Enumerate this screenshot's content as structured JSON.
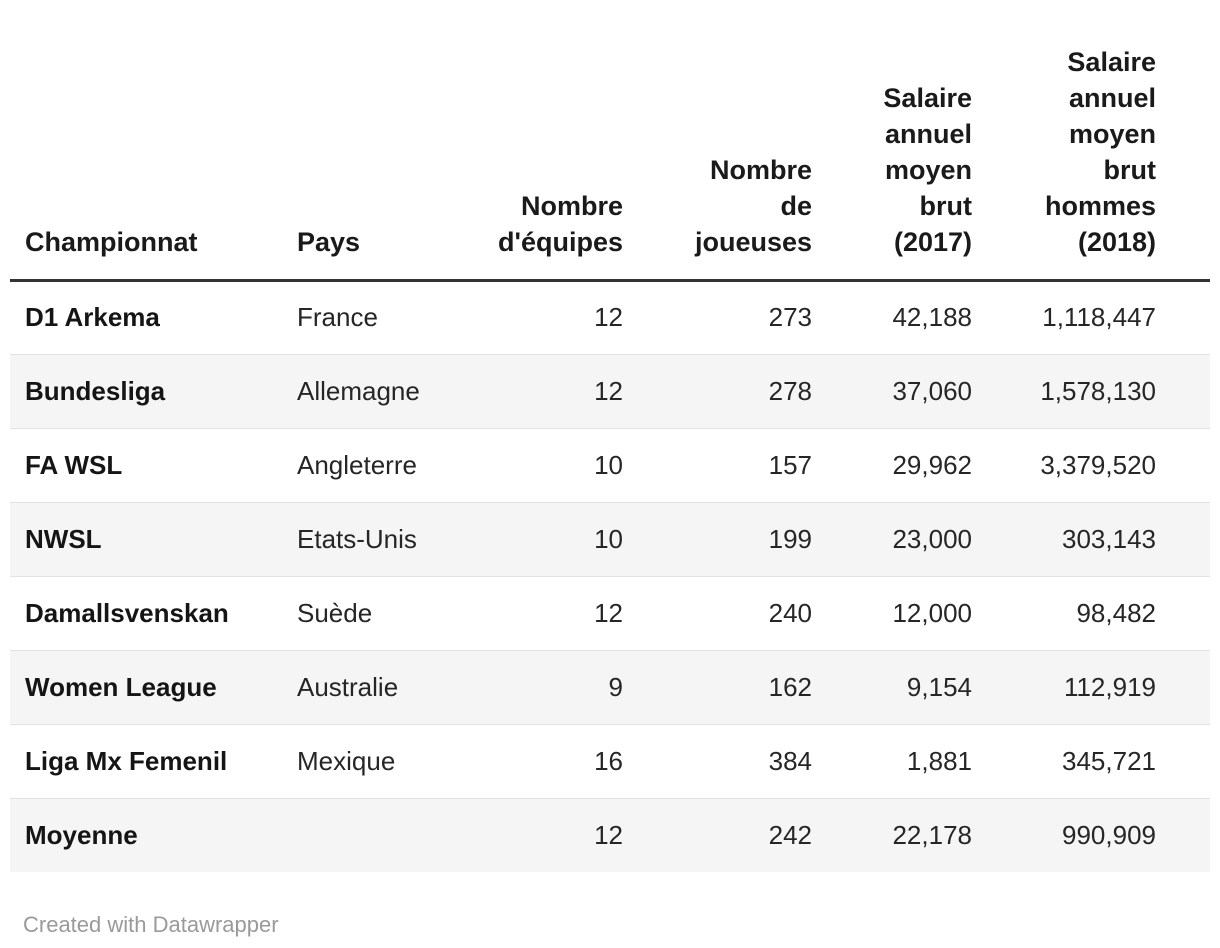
{
  "chart_data": {
    "type": "table",
    "columns": [
      {
        "label": "Championnat",
        "align": "left"
      },
      {
        "label": "Pays",
        "align": "left"
      },
      {
        "label": "Nombre\nd'équipes",
        "align": "right"
      },
      {
        "label": "Nombre\nde\njoueuses",
        "align": "right"
      },
      {
        "label": "Salaire\nannuel\nmoyen\nbrut\n(2017)",
        "align": "right"
      },
      {
        "label": "Salaire\nannuel\nmoyen\nbrut\nhommes\n(2018)",
        "align": "right"
      }
    ],
    "rows": [
      [
        "D1 Arkema",
        "France",
        "12",
        "273",
        "42,188",
        "1,118,447"
      ],
      [
        "Bundesliga",
        "Allemagne",
        "12",
        "278",
        "37,060",
        "1,578,130"
      ],
      [
        "FA WSL",
        "Angleterre",
        "10",
        "157",
        "29,962",
        "3,379,520"
      ],
      [
        "NWSL",
        "Etats-Unis",
        "10",
        "199",
        "23,000",
        "303,143"
      ],
      [
        "Damallsvenskan",
        "Suède",
        "12",
        "240",
        "12,000",
        "98,482"
      ],
      [
        "Women League",
        "Australie",
        "9",
        "162",
        "9,154",
        "112,919"
      ],
      [
        "Liga Mx Femenil",
        "Mexique",
        "16",
        "384",
        "1,881",
        "345,721"
      ],
      [
        "Moyenne",
        "",
        "12",
        "242",
        "22,178",
        "990,909"
      ]
    ],
    "layout_hints": {
      "striped_rows": "even",
      "header_border_bottom": true,
      "numeric_columns_right_aligned": true
    }
  },
  "footer": {
    "attribution": "Created with Datawrapper"
  },
  "colors": {
    "background": "#ffffff",
    "header_text": "#1a1a1a",
    "header_border": "#333333",
    "body_text": "#262626",
    "bold_text": "#151515",
    "row_stripe": "#f5f5f5",
    "row_divider": "#e2e2e2",
    "footer_text": "#9a9a9a"
  }
}
